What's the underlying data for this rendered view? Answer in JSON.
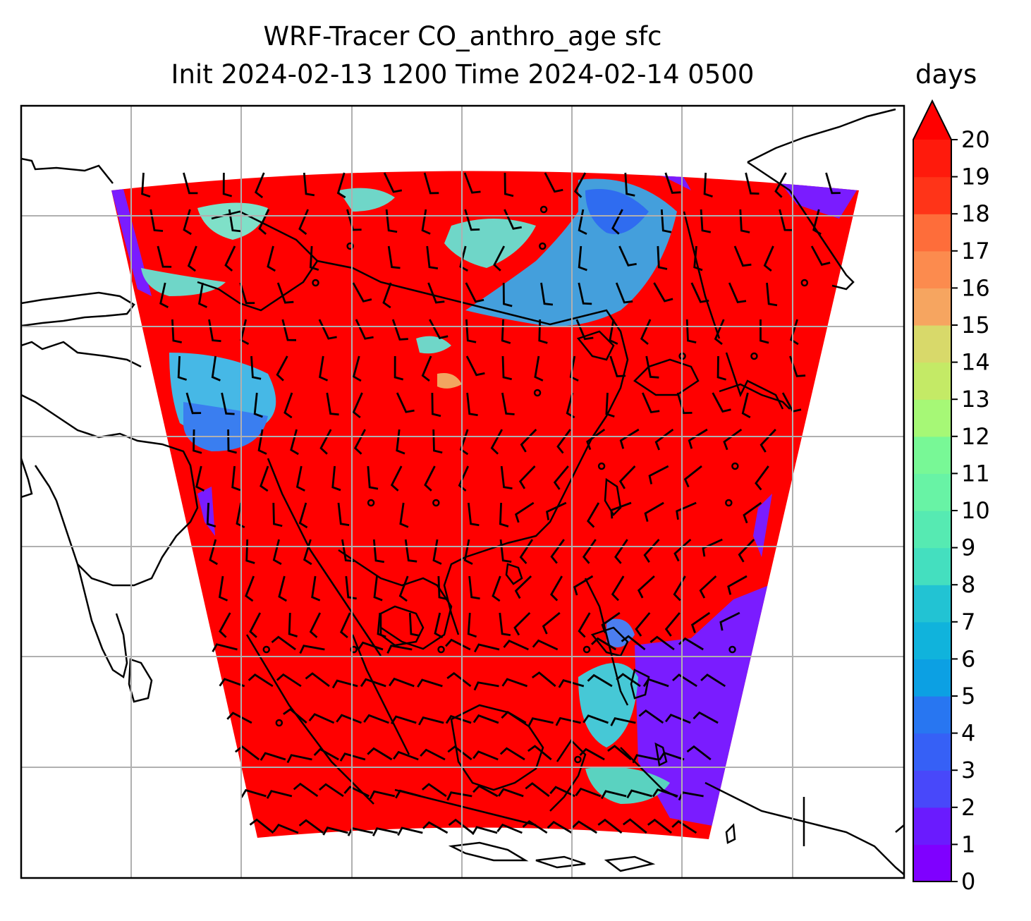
{
  "title": {
    "line1": "WRF-Tracer CO_anthro_age sfc",
    "line2": "Init 2024-02-13 1200 Time 2024-02-14 0500"
  },
  "colorbar": {
    "label": "days",
    "min": 0,
    "max": 20,
    "step": 1,
    "extend": "max",
    "colormap": "rainbow",
    "colors": [
      "#7f00ff",
      "#6a1bfe",
      "#5a32fd",
      "#4848fa",
      "#3660f6",
      "#2876f1",
      "#1a8aeb",
      "#0ca0e3",
      "#10b3dc",
      "#22c3d3",
      "#32d2ca",
      "#44dfbf",
      "#56eab2",
      "#68f3a5",
      "#78f896",
      "#88fd88",
      "#a6f876",
      "#c4ea66",
      "#d8d96a",
      "#eec06e",
      "#f6a560",
      "#fc8b4e",
      "#fe6d3a",
      "#ff5228",
      "#ff3418",
      "#ff1a0c",
      "#ff0000"
    ],
    "tick_labels": [
      "0",
      "1",
      "2",
      "3",
      "4",
      "5",
      "6",
      "7",
      "8",
      "9",
      "10",
      "11",
      "12",
      "13",
      "14",
      "15",
      "16",
      "17",
      "18",
      "19",
      "20"
    ]
  },
  "map": {
    "gridlines": true,
    "field_dominant_color": "#ff0000",
    "low_value_color": "#7a1cff",
    "mid_value_color": "#6fd6c8",
    "coastline_color": "#000000",
    "wind_barbs": true
  }
}
